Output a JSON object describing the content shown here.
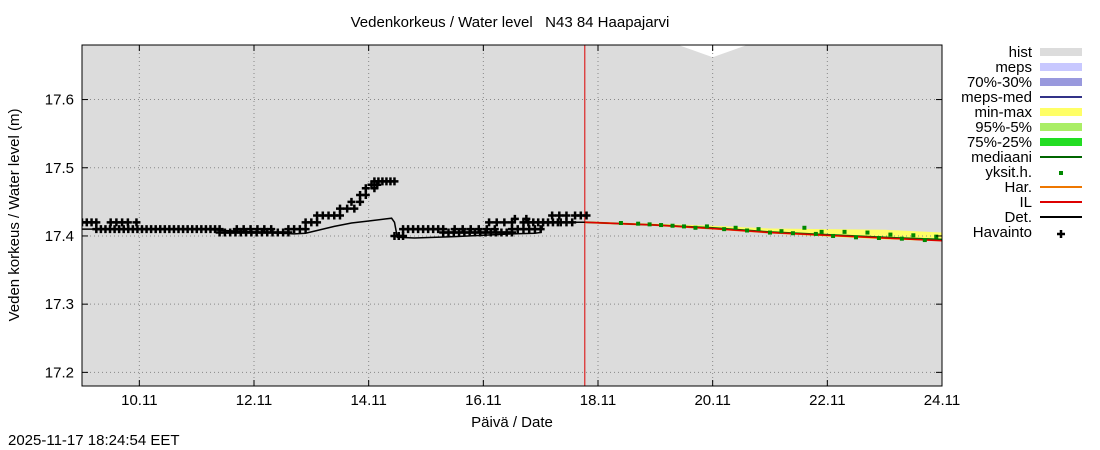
{
  "chart_data": {
    "type": "line",
    "title": "Vedenkorkeus / Water level   N43 84 Haapajarvi",
    "xlabel": "Päivä / Date",
    "ylabel": "Veden korkeus / Water level (m)",
    "timestamp": "2025-11-17 18:24:54 EET",
    "x_unit": "day of November 2025",
    "xlim": [
      9.0,
      24.0
    ],
    "ylim": [
      17.18,
      17.68
    ],
    "x_ticks": [
      {
        "day": 10,
        "label": "10.11"
      },
      {
        "day": 12,
        "label": "12.11"
      },
      {
        "day": 14,
        "label": "14.11"
      },
      {
        "day": 16,
        "label": "16.11"
      },
      {
        "day": 18,
        "label": "18.11"
      },
      {
        "day": 20,
        "label": "20.11"
      },
      {
        "day": 22,
        "label": "22.11"
      },
      {
        "day": 24,
        "label": "24.11"
      }
    ],
    "y_ticks": [
      {
        "value": 17.2,
        "label": "17.2"
      },
      {
        "value": 17.3,
        "label": "17.3"
      },
      {
        "value": 17.4,
        "label": "17.4"
      },
      {
        "value": 17.5,
        "label": "17.5"
      },
      {
        "value": 17.6,
        "label": "17.6"
      }
    ],
    "grid": true,
    "current_time_day": 17.77,
    "colors": {
      "hist": "#dcdcdc",
      "meps": "#c8c8ff",
      "p70_30": "#9999dd",
      "meps_med": "#333388",
      "minmax": "#ffff66",
      "p95_5": "#aaee66",
      "p75_25": "#22dd22",
      "mediaani": "#006600",
      "yksit": "#008800",
      "har": "#ee7700",
      "il": "#dd0000",
      "det": "#000000",
      "havainto": "#000000",
      "now_line": "#dd0000"
    },
    "legend": {
      "placement": "right",
      "entries": [
        {
          "label": "hist",
          "style": "band",
          "color_key": "hist"
        },
        {
          "label": "meps",
          "style": "band",
          "color_key": "meps"
        },
        {
          "label": "70%-30%",
          "style": "band",
          "color_key": "p70_30"
        },
        {
          "label": "meps-med",
          "style": "line",
          "color_key": "meps_med"
        },
        {
          "label": "min-max",
          "style": "band",
          "color_key": "minmax"
        },
        {
          "label": "95%-5%",
          "style": "band",
          "color_key": "p95_5"
        },
        {
          "label": "75%-25%",
          "style": "band",
          "color_key": "p75_25"
        },
        {
          "label": "mediaani",
          "style": "line",
          "color_key": "mediaani"
        },
        {
          "label": "yksit.h.",
          "style": "dot",
          "color_key": "yksit"
        },
        {
          "label": "Har.",
          "style": "line",
          "color_key": "har"
        },
        {
          "label": "IL",
          "style": "line",
          "color_key": "il"
        },
        {
          "label": "Det.",
          "style": "line",
          "color_key": "det"
        },
        {
          "label": "Havainto",
          "style": "plus",
          "color_key": "havainto"
        }
      ]
    },
    "series": [
      {
        "name": "hist",
        "kind": "band",
        "x": [
          9.0,
          19.4,
          20.0,
          20.6,
          24.0
        ],
        "lower": [
          17.18,
          17.18,
          17.18,
          17.18,
          17.18
        ],
        "upper": [
          17.68,
          17.68,
          17.662,
          17.68,
          17.68
        ]
      },
      {
        "name": "min-max",
        "kind": "band",
        "x": [
          17.77,
          19.0,
          20.0,
          21.0,
          22.0,
          23.0,
          24.0
        ],
        "lower": [
          17.419,
          17.415,
          17.41,
          17.404,
          17.399,
          17.395,
          17.392
        ],
        "upper": [
          17.421,
          17.418,
          17.415,
          17.411,
          17.41,
          17.409,
          17.405
        ]
      },
      {
        "name": "Det.",
        "kind": "line",
        "x": [
          9.0,
          11.0,
          12.7,
          12.9,
          13.1,
          13.4,
          13.7,
          14.0,
          14.3,
          14.4,
          14.45,
          14.5,
          14.8,
          15.5,
          16.5,
          16.9,
          17.0,
          17.05,
          17.5,
          17.77
        ],
        "y": [
          17.41,
          17.41,
          17.403,
          17.404,
          17.408,
          17.414,
          17.419,
          17.422,
          17.425,
          17.426,
          17.42,
          17.398,
          17.397,
          17.399,
          17.403,
          17.404,
          17.405,
          17.419,
          17.42,
          17.42
        ]
      },
      {
        "name": "IL",
        "kind": "line",
        "x": [
          17.77,
          19.0,
          20.0,
          21.0,
          22.0,
          23.0,
          24.0
        ],
        "y": [
          17.42,
          17.416,
          17.411,
          17.405,
          17.401,
          17.397,
          17.393
        ]
      },
      {
        "name": "Har.",
        "kind": "line",
        "x": [
          17.77,
          19.0,
          19.6,
          20.0,
          21.0,
          22.0,
          23.0,
          24.0
        ],
        "y": [
          17.42,
          17.416,
          17.413,
          17.411,
          17.405,
          17.401,
          17.397,
          17.394
        ]
      },
      {
        "name": "mediaani",
        "kind": "line",
        "x": [
          17.77,
          19.0,
          20.0,
          21.0,
          22.0,
          23.0,
          24.0
        ],
        "y": [
          17.42,
          17.416,
          17.412,
          17.406,
          17.402,
          17.398,
          17.395
        ]
      },
      {
        "name": "yksit.h.",
        "kind": "dots",
        "x": [
          18.4,
          18.7,
          18.9,
          19.1,
          19.3,
          19.5,
          19.7,
          19.9,
          20.2,
          20.4,
          20.6,
          20.8,
          21.0,
          21.2,
          21.4,
          21.6,
          21.8,
          21.9,
          22.1,
          22.3,
          22.5,
          22.7,
          22.9,
          23.1,
          23.3,
          23.5,
          23.7,
          23.9
        ],
        "y": [
          17.419,
          17.418,
          17.417,
          17.416,
          17.415,
          17.414,
          17.412,
          17.414,
          17.41,
          17.412,
          17.408,
          17.41,
          17.405,
          17.407,
          17.404,
          17.412,
          17.403,
          17.406,
          17.4,
          17.406,
          17.398,
          17.405,
          17.397,
          17.402,
          17.396,
          17.401,
          17.394,
          17.399
        ]
      },
      {
        "name": "Havainto",
        "kind": "plus",
        "segments": [
          {
            "x0": 9.0,
            "x1": 9.25,
            "y": 17.42,
            "n": 4
          },
          {
            "x0": 9.25,
            "x1": 11.4,
            "y": 17.41,
            "n": 28
          },
          {
            "x0": 9.5,
            "x1": 9.7,
            "y": 17.42,
            "n": 3
          },
          {
            "x0": 9.8,
            "x1": 9.95,
            "y": 17.42,
            "n": 2
          },
          {
            "x0": 11.4,
            "x1": 12.6,
            "y": 17.405,
            "n": 14
          },
          {
            "x0": 11.7,
            "x1": 12.3,
            "y": 17.41,
            "n": 6
          },
          {
            "x0": 12.6,
            "x1": 12.9,
            "y": 17.41,
            "n": 4
          },
          {
            "x0": 12.9,
            "x1": 13.1,
            "y": 17.42,
            "n": 3
          },
          {
            "x0": 13.1,
            "x1": 13.5,
            "y": 17.43,
            "n": 5
          },
          {
            "x0": 13.5,
            "x1": 13.75,
            "y": 17.44,
            "n": 3
          },
          {
            "x0": 13.7,
            "x1": 13.85,
            "y": 17.45,
            "n": 2
          },
          {
            "x0": 13.85,
            "x1": 13.95,
            "y": 17.46,
            "n": 2
          },
          {
            "x0": 13.95,
            "x1": 14.1,
            "y": 17.47,
            "n": 2
          },
          {
            "x0": 14.05,
            "x1": 14.15,
            "y": 17.475,
            "n": 2
          },
          {
            "x0": 14.1,
            "x1": 14.45,
            "y": 17.48,
            "n": 6
          },
          {
            "x0": 14.45,
            "x1": 14.6,
            "y": 17.4,
            "n": 3
          },
          {
            "x0": 14.6,
            "x1": 15.3,
            "y": 17.41,
            "n": 9
          },
          {
            "x0": 15.3,
            "x1": 16.5,
            "y": 17.405,
            "n": 14
          },
          {
            "x0": 15.5,
            "x1": 16.2,
            "y": 17.41,
            "n": 6
          },
          {
            "x0": 16.1,
            "x1": 16.5,
            "y": 17.42,
            "n": 4
          },
          {
            "x0": 16.5,
            "x1": 17.0,
            "y": 17.41,
            "n": 6
          },
          {
            "x0": 16.55,
            "x1": 16.75,
            "y": 17.425,
            "n": 2
          },
          {
            "x0": 16.7,
            "x1": 17.3,
            "y": 17.42,
            "n": 8
          },
          {
            "x0": 17.2,
            "x1": 17.45,
            "y": 17.43,
            "n": 3
          },
          {
            "x0": 17.35,
            "x1": 17.55,
            "y": 17.42,
            "n": 3
          },
          {
            "x0": 17.6,
            "x1": 17.8,
            "y": 17.43,
            "n": 3
          }
        ]
      }
    ]
  }
}
